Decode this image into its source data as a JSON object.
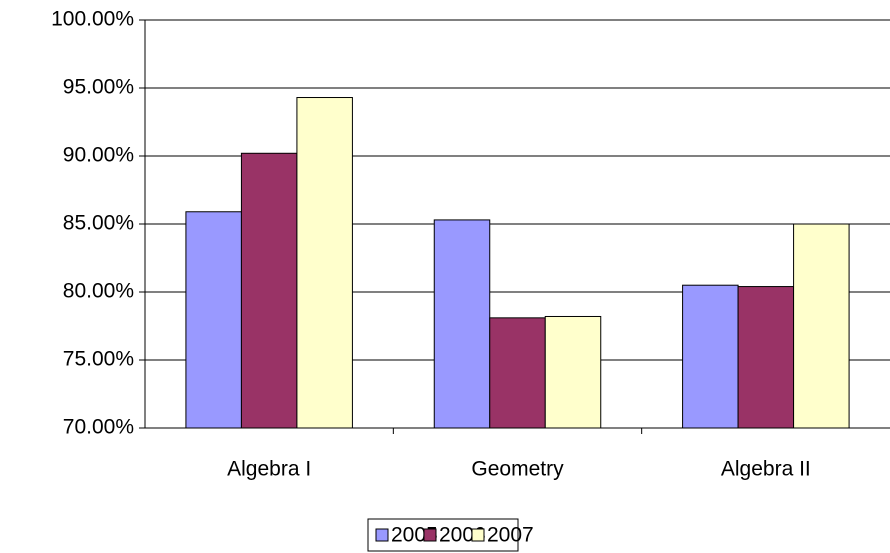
{
  "chart_data": {
    "type": "bar",
    "categories": [
      "Algebra I",
      "Geometry",
      "Algebra II"
    ],
    "series": [
      {
        "name": "2005",
        "color": "#9999ff",
        "values": [
          85.9,
          85.3,
          80.5
        ]
      },
      {
        "name": "2006",
        "color": "#993366",
        "values": [
          90.2,
          78.1,
          80.4
        ]
      },
      {
        "name": "2007",
        "color": "#ffffcc",
        "values": [
          94.3,
          78.2,
          85.0
        ]
      }
    ],
    "ylim": [
      70,
      100
    ],
    "yticks": [
      {
        "value": 70,
        "label": "70.00%"
      },
      {
        "value": 75,
        "label": "75.00%"
      },
      {
        "value": 80,
        "label": "80.00%"
      },
      {
        "value": 85,
        "label": "85.00%"
      },
      {
        "value": 90,
        "label": "90.00%"
      },
      {
        "value": 95,
        "label": "95.00%"
      },
      {
        "value": 100,
        "label": "100.00%"
      }
    ],
    "grid": true,
    "legend": "bottom"
  }
}
